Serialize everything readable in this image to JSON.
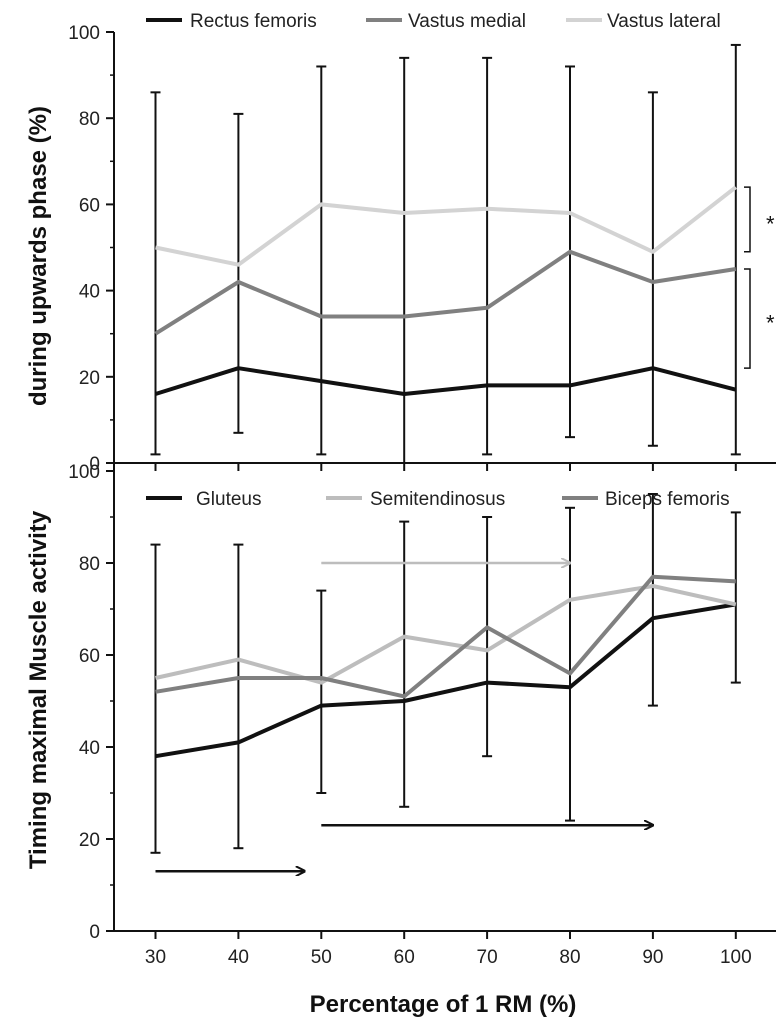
{
  "chart_data": [
    {
      "type": "line",
      "panel": "top",
      "x": [
        30,
        40,
        50,
        60,
        70,
        80,
        90,
        100
      ],
      "ylim": [
        0,
        100
      ],
      "yticks": [
        0,
        20,
        40,
        60,
        80,
        100
      ],
      "series": [
        {
          "name": "Rectus femoris",
          "color": "#111111",
          "values": [
            16,
            22,
            19,
            16,
            18,
            18,
            22,
            17
          ]
        },
        {
          "name": "Vastus medial",
          "color": "#808080",
          "values": [
            30,
            42,
            34,
            34,
            36,
            49,
            42,
            45
          ]
        },
        {
          "name": "Vastus lateral",
          "color": "#d3d3d3",
          "values": [
            50,
            46,
            60,
            58,
            59,
            58,
            49,
            64
          ]
        }
      ],
      "error_bars": {
        "x": [
          30,
          40,
          50,
          60,
          70,
          80,
          90,
          100
        ],
        "low": [
          2,
          7,
          2,
          0,
          2,
          6,
          4,
          2
        ],
        "high": [
          86,
          81,
          92,
          94,
          94,
          92,
          86,
          97
        ]
      },
      "significance": [
        {
          "label": "*",
          "from": 49,
          "to": 64
        },
        {
          "label": "*",
          "from": 22,
          "to": 45
        }
      ]
    },
    {
      "type": "line",
      "panel": "bottom",
      "x": [
        30,
        40,
        50,
        60,
        70,
        80,
        90,
        100
      ],
      "xlabel": "Percentage of 1 RM (%)",
      "ylim": [
        0,
        100
      ],
      "yticks": [
        0,
        20,
        40,
        60,
        80,
        100
      ],
      "series": [
        {
          "name": "Gluteus",
          "color": "#111111",
          "values": [
            38,
            41,
            49,
            50,
            54,
            53,
            68,
            71
          ]
        },
        {
          "name": "Semitendinosus",
          "color": "#bdbdbd",
          "values": [
            55,
            59,
            54,
            64,
            61,
            72,
            75,
            71
          ]
        },
        {
          "name": "Biceps femoris",
          "color": "#808080",
          "values": [
            52,
            55,
            55,
            51,
            66,
            56,
            77,
            76
          ]
        }
      ],
      "error_bars": {
        "x": [
          30,
          40,
          50,
          60,
          70,
          80,
          90,
          100
        ],
        "low": [
          17,
          18,
          30,
          27,
          38,
          24,
          49,
          54
        ],
        "high": [
          84,
          84,
          74,
          89,
          90,
          92,
          95,
          91
        ]
      },
      "arrows": [
        {
          "color": "#bdbdbd",
          "x_from": 50,
          "x_to": 80,
          "y": 80
        },
        {
          "color": "#111111",
          "x_from": 50,
          "x_to": 90,
          "y": 23
        },
        {
          "color": "#111111",
          "x_from": 30,
          "x_to": 48,
          "y": 13
        }
      ]
    }
  ],
  "ylabel_top": "during upwards phase (%)",
  "ylabel_bottom": "Timing maximal Muscle activity"
}
